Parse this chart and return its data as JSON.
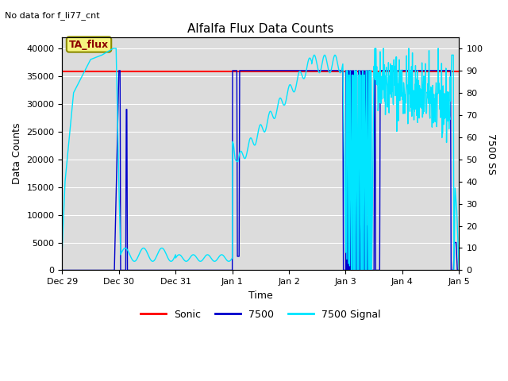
{
  "title": "Alfalfa Flux Data Counts",
  "subtitle": "No data for f_li77_cnt",
  "xlabel": "Time",
  "ylabel_left": "Data Counts",
  "ylabel_right": "7500 SS",
  "ylim_left": [
    0,
    42000
  ],
  "ylim_right": [
    0,
    105
  ],
  "yticks_left": [
    0,
    5000,
    10000,
    15000,
    20000,
    25000,
    30000,
    35000,
    40000
  ],
  "yticks_right": [
    0,
    10,
    20,
    30,
    40,
    50,
    60,
    70,
    80,
    90,
    100
  ],
  "xtick_labels": [
    "Dec 29",
    "Dec 30",
    "Dec 31",
    "Jan 1",
    "Jan 2",
    "Jan 3",
    "Jan 4",
    "Jan 5"
  ],
  "sonic_color": "#ff0000",
  "s7500_color": "#0000cc",
  "signal_color": "#00e5ff",
  "bg_color": "#dcdcdc",
  "grid_color": "#ffffff",
  "annotation_text": "TA_flux",
  "annotation_color": "#8b0000",
  "annotation_bg": "#f5f580",
  "legend_labels": [
    "Sonic",
    "7500",
    "7500 Signal"
  ]
}
